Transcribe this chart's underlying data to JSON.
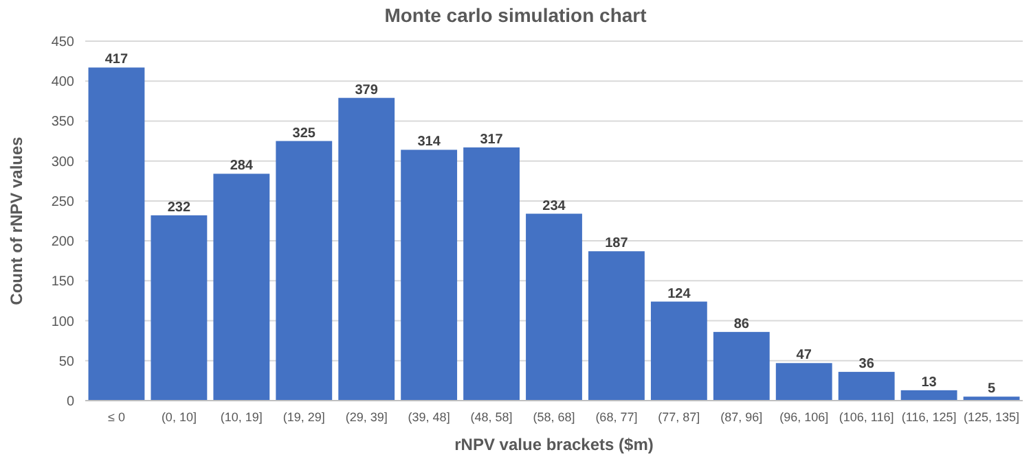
{
  "chart_data": {
    "type": "bar",
    "title": "Monte carlo simulation chart",
    "xlabel": "rNPV value brackets ($m)",
    "ylabel": "Count of rNPV values",
    "categories": [
      "≤ 0",
      "(0, 10]",
      "(10, 19]",
      "(19, 29]",
      "(29, 39]",
      "(39, 48]",
      "(48, 58]",
      "(58, 68]",
      "(68, 77]",
      "(77, 87]",
      "(87, 96]",
      "(96, 106]",
      "(106, 116]",
      "(116, 125]",
      "(125, 135]"
    ],
    "values": [
      417,
      232,
      284,
      325,
      379,
      314,
      317,
      234,
      187,
      124,
      86,
      47,
      36,
      13,
      5
    ],
    "color": "#4472c4",
    "ylim": [
      0,
      450
    ],
    "yticks": [
      0,
      50,
      100,
      150,
      200,
      250,
      300,
      350,
      400,
      450
    ],
    "grid": "y",
    "data_labels": true
  }
}
